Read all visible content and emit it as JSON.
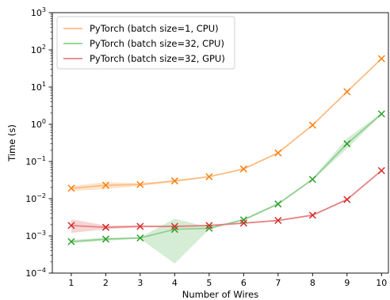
{
  "chart_data": {
    "type": "line",
    "title": "",
    "xlabel": "Number of Wires",
    "ylabel": "Time (s)",
    "y_scale": "log",
    "x": [
      1,
      2,
      3,
      4,
      5,
      6,
      7,
      8,
      9,
      10
    ],
    "xlim": [
      0.45,
      10.2
    ],
    "ylim": [
      0.0001,
      1000
    ],
    "x_ticks": [
      "1",
      "2",
      "3",
      "4",
      "5",
      "6",
      "7",
      "8",
      "9",
      "10"
    ],
    "y_ticks": [
      {
        "value": 0.0001,
        "base": "10",
        "exp": "−4"
      },
      {
        "value": 0.001,
        "base": "10",
        "exp": "−3"
      },
      {
        "value": 0.01,
        "base": "10",
        "exp": "−2"
      },
      {
        "value": 0.1,
        "base": "10",
        "exp": "−1"
      },
      {
        "value": 1,
        "base": "10",
        "exp": "0"
      },
      {
        "value": 10,
        "base": "10",
        "exp": "1"
      },
      {
        "value": 100,
        "base": "10",
        "exp": "2"
      },
      {
        "value": 1000,
        "base": "10",
        "exp": "3"
      }
    ],
    "grid": false,
    "legend_position": "top-left",
    "marker": "x",
    "series": [
      {
        "name": "PyTorch (batch size=1, CPU)",
        "color": "#ff7f0e",
        "line_color": "#ffbb80",
        "values": [
          0.019,
          0.023,
          0.024,
          0.03,
          0.039,
          0.063,
          0.17,
          0.95,
          7.5,
          58
        ],
        "band_low": [
          0.016,
          0.018,
          0.022,
          0.028,
          0.037,
          0.06,
          0.16,
          0.9,
          7.0,
          55
        ],
        "band_high": [
          0.022,
          0.028,
          0.026,
          0.032,
          0.041,
          0.066,
          0.18,
          1.0,
          8.0,
          61
        ]
      },
      {
        "name": "PyTorch (batch size=32, CPU)",
        "color": "#2ca02c",
        "line_color": "#8ccf8c",
        "values": [
          0.0007,
          0.00082,
          0.00088,
          0.0015,
          0.0016,
          0.0027,
          0.0072,
          0.033,
          0.3,
          1.9
        ],
        "band_low": [
          0.00064,
          0.00074,
          0.00084,
          0.00018,
          0.0015,
          0.0026,
          0.0069,
          0.031,
          0.22,
          1.8
        ],
        "band_high": [
          0.00078,
          0.0009,
          0.00092,
          0.0029,
          0.0017,
          0.0029,
          0.0076,
          0.035,
          0.42,
          2.0
        ]
      },
      {
        "name": "PyTorch (batch size=32, GPU)",
        "color": "#d62728",
        "line_color": "#e58080",
        "values": [
          0.0019,
          0.0017,
          0.0018,
          0.0018,
          0.0019,
          0.0022,
          0.0026,
          0.0036,
          0.0095,
          0.057
        ],
        "band_low": [
          0.0012,
          0.0015,
          0.0017,
          0.0017,
          0.0018,
          0.0021,
          0.0025,
          0.0034,
          0.009,
          0.054
        ],
        "band_high": [
          0.0028,
          0.0019,
          0.0019,
          0.0019,
          0.002,
          0.0023,
          0.0027,
          0.0038,
          0.01,
          0.06
        ]
      }
    ]
  }
}
